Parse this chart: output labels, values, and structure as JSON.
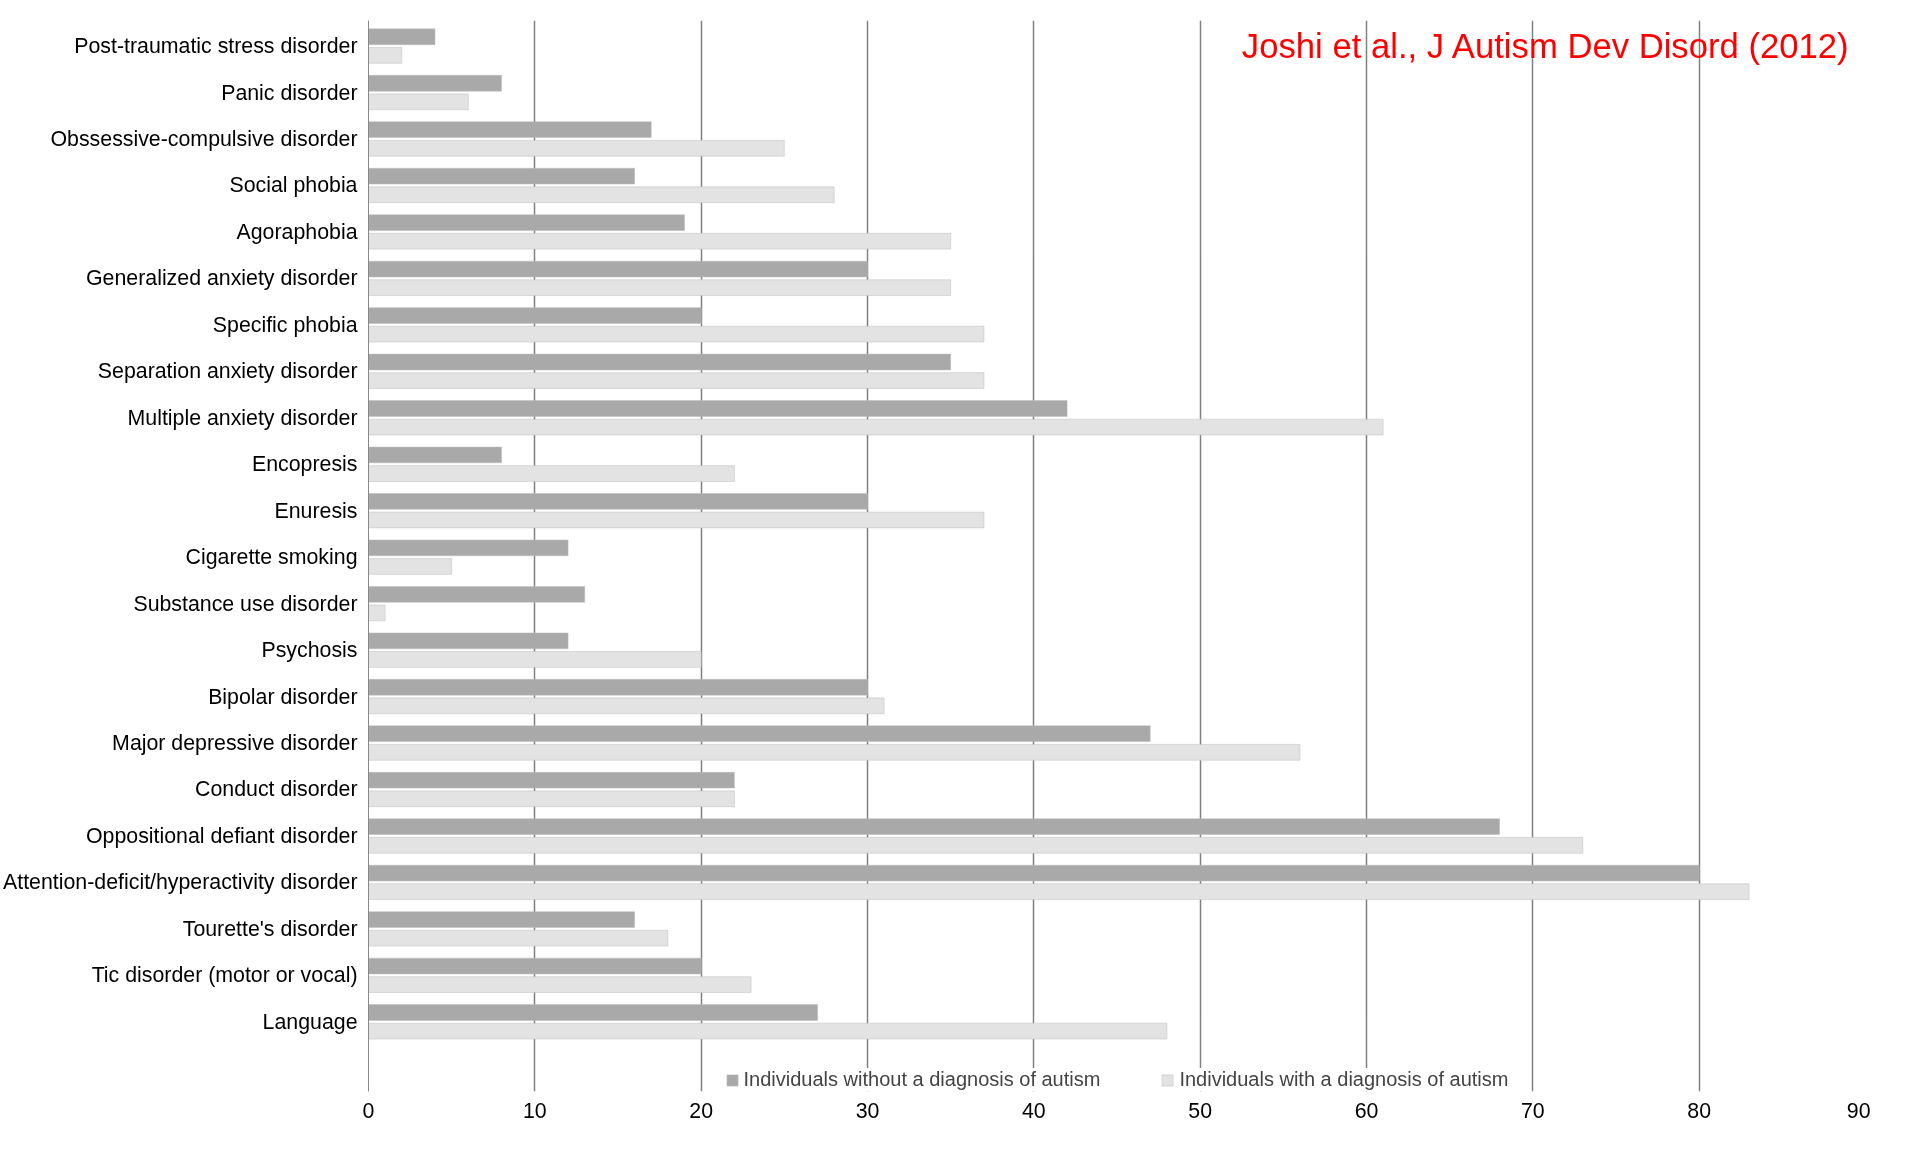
{
  "chart_data": {
    "type": "bar",
    "orientation": "horizontal",
    "categories": [
      "Post-traumatic stress disorder",
      "Panic disorder",
      "Obssessive-compulsive disorder",
      "Social phobia",
      "Agoraphobia",
      "Generalized anxiety disorder",
      "Specific phobia",
      "Separation anxiety disorder",
      "Multiple anxiety disorder",
      "Encopresis",
      "Enuresis",
      "Cigarette smoking",
      "Substance use disorder",
      "Psychosis",
      "Bipolar disorder",
      "Major depressive disorder",
      "Conduct disorder",
      "Oppositional defiant disorder",
      "Attention-deficit/hyperactivity disorder",
      "Tourette's disorder",
      "Tic disorder (motor or vocal)",
      "Language"
    ],
    "series": [
      {
        "name": "Individuals without a diagnosis of autism",
        "color": "#a9a9a9",
        "values": [
          4,
          8,
          17,
          16,
          19,
          30,
          20,
          35,
          42,
          8,
          30,
          12,
          13,
          12,
          30,
          47,
          22,
          68,
          80,
          16,
          20,
          27
        ]
      },
      {
        "name": "Individuals with a diagnosis of autism",
        "color": "#e3e3e3",
        "values": [
          2,
          6,
          25,
          28,
          35,
          35,
          37,
          37,
          61,
          22,
          37,
          5,
          1,
          20,
          31,
          56,
          22,
          73,
          83,
          18,
          23,
          48
        ]
      }
    ],
    "xlim": [
      0,
      90
    ],
    "xticks": [
      0,
      10,
      20,
      30,
      40,
      50,
      60,
      70,
      80,
      90
    ],
    "grid": "x",
    "legend": "bottom",
    "annotations": [
      "Joshi et al., J Autism Dev Disord (2012)"
    ]
  }
}
